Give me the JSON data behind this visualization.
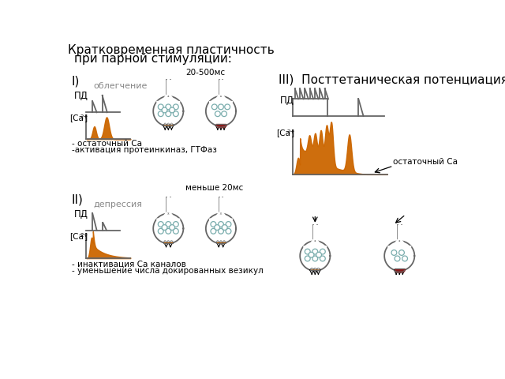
{
  "title_line1": "Кратковременная пластичность",
  "title_line2": "при парной стимуляции:",
  "section_I_label": "I)",
  "section_II_label": "II)",
  "section_III_label": "III)  Посттетаническая потенциация",
  "label_облегчение": "облегчение",
  "label_депрессия": "депрессия",
  "label_ПД": "ПД",
  "label_20_500": "20-500мс",
  "label_менее_20": "меньше 20мс",
  "label_остат_Ca": "остаточный Са",
  "label_Ca_остат": "- остаточный Са",
  "label_Ca_протеин": "-активация протеинкиназ, ГТФаз",
  "label_инакт": "- инактивация Са каналов",
  "label_умен": "- уменьшение числа докированных везикул",
  "orange_color": "#CC6600",
  "dark_red_color": "#8B1A1A",
  "line_color": "#666666",
  "bg_color": "#ffffff",
  "font_size_title": 11,
  "font_size_label": 8,
  "font_size_section": 11
}
